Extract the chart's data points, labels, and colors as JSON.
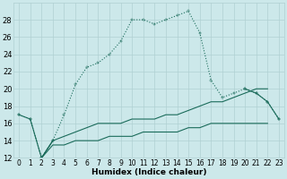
{
  "xlabel": "Humidex (Indice chaleur)",
  "x": [
    0,
    1,
    2,
    3,
    4,
    5,
    6,
    7,
    8,
    9,
    10,
    11,
    12,
    13,
    14,
    15,
    16,
    17,
    18,
    19,
    20,
    21,
    22,
    23
  ],
  "line_main_dotted": [
    17,
    16.5,
    12,
    14,
    17,
    20.5,
    22.5,
    23,
    24,
    25.5,
    28,
    28,
    27.5,
    28,
    28.5,
    29,
    26.5,
    21,
    19,
    19.5,
    20,
    19.5,
    18.5,
    16.5
  ],
  "line_solid_outer": [
    17,
    16.5,
    12,
    14,
    null,
    null,
    null,
    null,
    null,
    null,
    null,
    null,
    null,
    null,
    null,
    null,
    null,
    null,
    null,
    null,
    20,
    19.5,
    18.5,
    16.5
  ],
  "line_upper_diag": [
    null,
    null,
    12,
    14,
    14.5,
    15,
    15.5,
    16,
    16,
    16,
    16.5,
    16.5,
    16.5,
    17,
    17,
    17.5,
    18,
    18.5,
    18.5,
    19,
    19.5,
    20,
    20,
    null
  ],
  "line_lower_flat": [
    null,
    null,
    12,
    13.5,
    13.5,
    14,
    14,
    14,
    14.5,
    14.5,
    14.5,
    15,
    15,
    15,
    15,
    15.5,
    15.5,
    16,
    16,
    16,
    16,
    16,
    16,
    null
  ],
  "bg_color": "#cce8ea",
  "line_color": "#1a6b5a",
  "grid_color": "#b0d0d2",
  "ylim": [
    12,
    30
  ],
  "yticks": [
    12,
    14,
    16,
    18,
    20,
    22,
    24,
    26,
    28
  ],
  "xticks": [
    0,
    1,
    2,
    3,
    4,
    5,
    6,
    7,
    8,
    9,
    10,
    11,
    12,
    13,
    14,
    15,
    16,
    17,
    18,
    19,
    20,
    21,
    22,
    23
  ]
}
